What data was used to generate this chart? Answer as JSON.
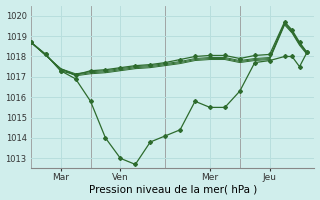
{
  "xlabel": "Pression niveau de la mer( hPa )",
  "bg_color": "#d0eeec",
  "grid_color": "#b8dedd",
  "line_color": "#2d6b2d",
  "ylim": [
    1012.5,
    1020.5
  ],
  "yticks": [
    1013,
    1014,
    1015,
    1016,
    1017,
    1018,
    1019,
    1020
  ],
  "day_labels": [
    "Mar",
    "Ven",
    "Mer",
    "Jeu"
  ],
  "day_positions": [
    1,
    3,
    6,
    8
  ],
  "vline_positions": [
    0,
    2,
    4.5,
    7
  ],
  "xlim": [
    0,
    9.5
  ],
  "x_values": [
    0,
    0.5,
    1.0,
    1.5,
    2.0,
    2.5,
    3.0,
    3.5,
    4.0,
    4.5,
    5.0,
    5.5,
    6.0,
    6.5,
    7.0,
    7.5,
    8.0,
    8.5,
    8.75,
    9.0,
    9.25
  ],
  "series_low": [
    1018.7,
    1018.1,
    1017.3,
    1016.9,
    1015.8,
    1014.0,
    1013.0,
    1012.7,
    1013.8,
    1014.1,
    1014.4,
    1015.8,
    1015.5,
    1015.5,
    1016.3,
    1017.7,
    1017.8,
    1018.0,
    1018.0,
    1017.5,
    1018.2
  ],
  "series_high": [
    1018.7,
    1018.1,
    1017.3,
    1017.1,
    1017.3,
    1017.35,
    1017.45,
    1017.55,
    1017.6,
    1017.7,
    1017.85,
    1018.0,
    1018.05,
    1018.05,
    1017.9,
    1018.05,
    1018.1,
    1019.7,
    1019.3,
    1018.7,
    1018.2
  ],
  "band_lines": [
    [
      1018.7,
      1018.05,
      1017.4,
      1017.15,
      1017.25,
      1017.3,
      1017.4,
      1017.5,
      1017.55,
      1017.65,
      1017.75,
      1017.9,
      1017.95,
      1017.95,
      1017.8,
      1017.9,
      1017.95,
      1019.65,
      1019.25,
      1018.65,
      1018.2
    ],
    [
      1018.7,
      1018.05,
      1017.4,
      1017.1,
      1017.2,
      1017.25,
      1017.35,
      1017.45,
      1017.5,
      1017.6,
      1017.7,
      1017.85,
      1017.9,
      1017.9,
      1017.75,
      1017.85,
      1017.9,
      1019.6,
      1019.2,
      1018.6,
      1018.15
    ],
    [
      1018.7,
      1018.05,
      1017.4,
      1017.05,
      1017.15,
      1017.2,
      1017.3,
      1017.4,
      1017.45,
      1017.55,
      1017.65,
      1017.8,
      1017.85,
      1017.85,
      1017.7,
      1017.8,
      1017.85,
      1019.55,
      1019.15,
      1018.55,
      1018.1
    ]
  ]
}
